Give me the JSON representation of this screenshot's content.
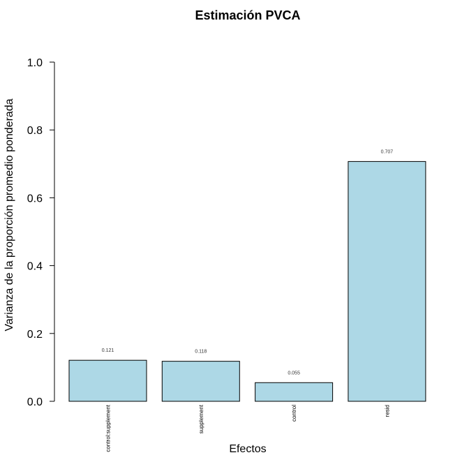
{
  "chart_data": {
    "type": "bar",
    "title": "Estimación PVCA",
    "xlabel": "Efectos",
    "ylabel": "Varianza de la proporción promedio ponderada",
    "categories": [
      "control:supplement",
      "supplement",
      "control",
      "resid"
    ],
    "values": [
      0.121,
      0.118,
      0.055,
      0.707
    ],
    "data_labels": [
      "0.121",
      "0.118",
      "0.055",
      "0.707"
    ],
    "ylim": [
      0,
      1
    ],
    "yticks": [
      0.0,
      0.2,
      0.4,
      0.6,
      0.8,
      1.0
    ],
    "ytick_labels": [
      "0.0",
      "0.2",
      "0.4",
      "0.6",
      "0.8",
      "1.0"
    ],
    "bar_color": "#add8e6",
    "grid": false,
    "legend": false
  }
}
